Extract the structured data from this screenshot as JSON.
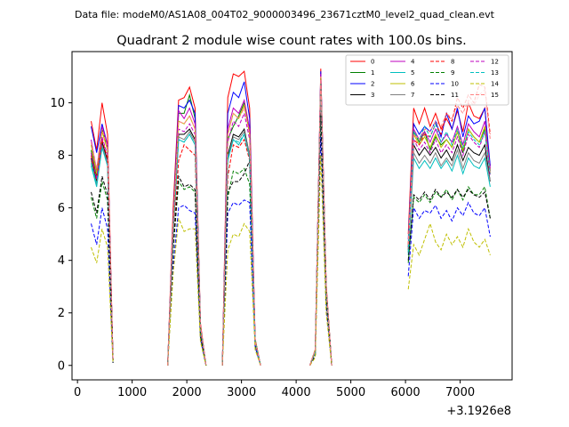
{
  "figure": {
    "suptitle": "Data file: modeM0/AS1A08_004T02_9000003496_23671cztM0_level2_quad_clean.evt",
    "title": "Quadrant 2 module wise count rates with 100.0s bins.",
    "x_offset_label": "+3.1926e8"
  },
  "chart_data": {
    "type": "line",
    "title": "Quadrant 2 module wise count rates with 100.0s bins.",
    "xlabel": "",
    "ylabel": "",
    "x_offset": 319260000,
    "xlim": [
      -100,
      7950
    ],
    "ylim": [
      -0.55,
      11.95
    ],
    "xticks": [
      0,
      1000,
      2000,
      3000,
      4000,
      5000,
      6000,
      7000
    ],
    "yticks": [
      0,
      2,
      4,
      6,
      8,
      10
    ],
    "xtick_labels": [
      "0",
      "1000",
      "2000",
      "3000",
      "4000",
      "5000",
      "6000",
      "7000"
    ],
    "ytick_labels": [
      "0",
      "2",
      "4",
      "6",
      "8",
      "10"
    ],
    "grid": false,
    "legend_placement": "top-right",
    "segments": [
      {
        "x": [
          250,
          350,
          450,
          550,
          650
        ]
      },
      {
        "x": [
          1650,
          1750,
          1850,
          1950,
          2050,
          2150,
          2250,
          2350
        ]
      },
      {
        "x": [
          2650,
          2750,
          2850,
          2950,
          3050,
          3150,
          3250,
          3350
        ]
      },
      {
        "x": [
          4250,
          4350,
          4450,
          4550,
          4650
        ]
      },
      {
        "x": [
          6050,
          6150,
          6250,
          6350,
          6450,
          6550,
          6650,
          6750,
          6850,
          6950,
          7050,
          7150,
          7250,
          7350,
          7450,
          7550
        ]
      }
    ],
    "series": [
      {
        "name": "0",
        "color": "#ff0000",
        "dash": "solid",
        "values": [
          [
            9.3,
            8.2,
            10.0,
            8.8,
            0.2
          ],
          [
            0.0,
            6.0,
            10.1,
            10.2,
            10.6,
            9.8,
            1.6,
            0.0
          ],
          [
            0.0,
            10.2,
            11.1,
            11.0,
            11.2,
            9.8,
            1.0,
            0.0
          ],
          [
            0.0,
            0.6,
            11.3,
            3.1,
            0.0
          ],
          [
            5.0,
            9.8,
            9.2,
            9.8,
            9.1,
            9.6,
            9.0,
            9.4,
            9.0,
            9.7,
            8.9,
            10.0,
            9.5,
            9.4,
            9.8,
            7.4
          ]
        ]
      },
      {
        "name": "1",
        "color": "#008000",
        "dash": "solid",
        "values": [
          [
            8.2,
            7.2,
            9.0,
            8.3,
            0.2
          ],
          [
            0.0,
            5.5,
            9.6,
            9.6,
            10.3,
            9.4,
            1.5,
            0.0
          ],
          [
            0.0,
            8.6,
            9.1,
            9.5,
            10.0,
            8.8,
            0.9,
            0.0
          ],
          [
            0.0,
            0.5,
            10.9,
            3.0,
            0.0
          ],
          [
            4.5,
            8.9,
            8.5,
            8.9,
            8.2,
            8.7,
            8.4,
            8.6,
            8.3,
            8.9,
            8.1,
            9.0,
            8.7,
            8.5,
            9.0,
            7.6
          ]
        ]
      },
      {
        "name": "2",
        "color": "#0000ff",
        "dash": "solid",
        "values": [
          [
            9.1,
            8.1,
            9.2,
            8.4,
            0.2
          ],
          [
            0.0,
            5.6,
            9.9,
            9.8,
            10.1,
            9.6,
            1.5,
            0.0
          ],
          [
            0.0,
            9.6,
            10.4,
            10.2,
            10.8,
            9.4,
            1.0,
            0.0
          ],
          [
            0.0,
            0.6,
            11.2,
            3.0,
            0.0
          ],
          [
            4.8,
            9.2,
            8.8,
            9.1,
            8.9,
            9.3,
            8.7,
            9.6,
            9.0,
            9.8,
            8.7,
            9.5,
            9.2,
            9.3,
            9.8,
            7.6
          ]
        ]
      },
      {
        "name": "3",
        "color": "#000000",
        "dash": "solid",
        "values": [
          [
            7.9,
            7.0,
            8.5,
            7.8,
            0.2
          ],
          [
            0.0,
            5.2,
            8.8,
            8.8,
            9.0,
            8.6,
            1.4,
            0.0
          ],
          [
            0.0,
            8.0,
            8.8,
            8.7,
            9.0,
            8.0,
            0.9,
            0.0
          ],
          [
            0.0,
            0.5,
            10.8,
            2.9,
            0.0
          ],
          [
            4.4,
            8.4,
            8.0,
            8.3,
            8.0,
            8.3,
            7.9,
            8.2,
            7.8,
            8.4,
            7.8,
            8.3,
            8.1,
            8.0,
            8.4,
            7.0
          ]
        ]
      },
      {
        "name": "4",
        "color": "#bf00bf",
        "dash": "solid",
        "values": [
          [
            8.6,
            7.4,
            9.1,
            8.4,
            0.2
          ],
          [
            0.0,
            5.5,
            9.7,
            9.4,
            9.8,
            9.2,
            1.5,
            0.0
          ],
          [
            0.0,
            9.0,
            9.8,
            9.6,
            10.1,
            9.0,
            1.0,
            0.0
          ],
          [
            0.0,
            0.6,
            11.1,
            3.0,
            0.0
          ],
          [
            4.6,
            9.0,
            8.6,
            8.9,
            8.5,
            9.0,
            8.5,
            8.8,
            8.5,
            9.1,
            8.4,
            9.2,
            8.9,
            8.7,
            9.3,
            7.5
          ]
        ]
      },
      {
        "name": "5",
        "color": "#00bfbf",
        "dash": "solid",
        "values": [
          [
            7.6,
            6.8,
            8.3,
            7.6,
            0.2
          ],
          [
            0.0,
            5.0,
            8.6,
            8.5,
            8.8,
            8.4,
            1.4,
            0.0
          ],
          [
            0.0,
            7.8,
            8.6,
            8.4,
            8.8,
            7.9,
            0.9,
            0.0
          ],
          [
            0.0,
            0.5,
            10.7,
            2.8,
            0.0
          ],
          [
            4.2,
            7.9,
            7.5,
            7.8,
            7.5,
            7.9,
            7.5,
            7.8,
            7.4,
            8.0,
            7.3,
            7.9,
            7.6,
            7.5,
            7.9,
            6.8
          ]
        ]
      },
      {
        "name": "6",
        "color": "#bfbf00",
        "dash": "solid",
        "values": [
          [
            8.4,
            7.3,
            8.9,
            8.2,
            0.2
          ],
          [
            0.0,
            5.4,
            9.3,
            9.2,
            9.5,
            9.0,
            1.5,
            0.0
          ],
          [
            0.0,
            8.8,
            9.6,
            9.4,
            9.9,
            8.8,
            1.0,
            0.0
          ],
          [
            0.0,
            0.6,
            11.0,
            3.0,
            0.0
          ],
          [
            4.6,
            8.8,
            8.4,
            8.7,
            8.3,
            8.8,
            8.3,
            8.6,
            8.3,
            8.9,
            8.2,
            9.0,
            8.7,
            8.5,
            9.1,
            7.3
          ]
        ]
      },
      {
        "name": "7",
        "color": "#808080",
        "dash": "solid",
        "values": [
          [
            7.8,
            6.9,
            8.4,
            7.7,
            0.2
          ],
          [
            0.0,
            5.1,
            8.7,
            8.6,
            8.9,
            8.5,
            1.4,
            0.0
          ],
          [
            0.0,
            7.9,
            8.7,
            8.6,
            8.9,
            8.0,
            0.9,
            0.0
          ],
          [
            0.0,
            0.5,
            10.8,
            2.9,
            0.0
          ],
          [
            4.3,
            8.1,
            7.7,
            8.0,
            7.7,
            8.1,
            7.6,
            7.9,
            7.6,
            8.2,
            7.5,
            8.1,
            7.8,
            7.7,
            8.1,
            7.0
          ]
        ]
      },
      {
        "name": "8",
        "color": "#ff0000",
        "dash": "dashed",
        "values": [
          [
            8.0,
            7.1,
            8.6,
            7.9,
            0.2
          ],
          [
            0.0,
            4.8,
            7.8,
            8.4,
            8.2,
            8.0,
            1.3,
            0.0
          ],
          [
            0.0,
            7.2,
            8.4,
            8.3,
            8.6,
            7.8,
            0.9,
            0.0
          ],
          [
            0.0,
            0.5,
            10.5,
            2.8,
            0.0
          ],
          [
            4.6,
            8.6,
            8.4,
            8.8,
            8.7,
            9.2,
            8.8,
            9.6,
            9.3,
            10.2,
            9.8,
            10.3,
            10.0,
            10.7,
            10.6,
            8.8
          ]
        ]
      },
      {
        "name": "9",
        "color": "#008000",
        "dash": "dashed",
        "values": [
          [
            6.4,
            5.6,
            7.0,
            6.3,
            0.1
          ],
          [
            0.0,
            4.4,
            7.0,
            6.7,
            6.8,
            6.6,
            1.1,
            0.0
          ],
          [
            0.0,
            6.4,
            7.4,
            7.3,
            7.5,
            6.9,
            0.8,
            0.0
          ],
          [
            0.0,
            0.4,
            9.5,
            2.5,
            0.0
          ],
          [
            3.9,
            6.4,
            6.2,
            6.5,
            6.2,
            6.6,
            6.4,
            6.7,
            6.3,
            6.7,
            6.3,
            6.8,
            6.5,
            6.5,
            6.8,
            5.6
          ]
        ]
      },
      {
        "name": "10",
        "color": "#0000ff",
        "dash": "dashed",
        "values": [
          [
            5.4,
            4.6,
            6.0,
            5.2,
            0.1
          ],
          [
            0.0,
            3.8,
            6.0,
            6.1,
            5.9,
            5.8,
            1.0,
            0.0
          ],
          [
            0.0,
            5.8,
            6.2,
            6.1,
            6.3,
            6.2,
            0.7,
            0.0
          ],
          [
            0.0,
            0.4,
            8.7,
            2.2,
            0.0
          ],
          [
            3.4,
            6.0,
            5.6,
            5.9,
            5.8,
            6.1,
            5.6,
            5.9,
            5.5,
            6.0,
            5.7,
            6.2,
            5.8,
            5.7,
            6.0,
            4.9
          ]
        ]
      },
      {
        "name": "11",
        "color": "#000000",
        "dash": "dashed",
        "values": [
          [
            6.6,
            5.8,
            7.2,
            6.5,
            0.1
          ],
          [
            0.0,
            4.5,
            7.2,
            6.8,
            6.9,
            6.7,
            1.1,
            0.0
          ],
          [
            0.0,
            6.6,
            7.0,
            7.0,
            7.3,
            7.8,
            0.8,
            0.0
          ],
          [
            0.0,
            0.4,
            9.6,
            2.5,
            0.0
          ],
          [
            4.0,
            6.5,
            6.3,
            6.6,
            6.3,
            6.7,
            6.4,
            6.6,
            6.4,
            6.7,
            6.4,
            6.7,
            6.5,
            6.4,
            6.6,
            5.6
          ]
        ]
      },
      {
        "name": "12",
        "color": "#bf00bf",
        "dash": "dashed",
        "values": [
          [
            8.1,
            7.1,
            8.7,
            8.0,
            0.2
          ],
          [
            0.0,
            5.3,
            9.0,
            8.9,
            9.2,
            8.8,
            1.5,
            0.0
          ],
          [
            0.0,
            8.5,
            9.3,
            9.1,
            9.6,
            8.6,
            0.9,
            0.0
          ],
          [
            0.0,
            0.5,
            10.9,
            2.9,
            0.0
          ],
          [
            4.5,
            8.6,
            8.2,
            8.5,
            8.1,
            8.6,
            8.1,
            8.4,
            8.1,
            8.7,
            8.0,
            8.8,
            8.5,
            8.3,
            8.9,
            7.2
          ]
        ]
      },
      {
        "name": "13",
        "color": "#00bfbf",
        "dash": "dashed",
        "values": [
          [
            7.7,
            6.9,
            8.3,
            7.6,
            0.2
          ],
          [
            0.0,
            5.0,
            8.6,
            8.5,
            8.8,
            8.4,
            1.4,
            0.0
          ],
          [
            0.0,
            7.9,
            8.6,
            8.5,
            8.8,
            7.9,
            0.9,
            0.0
          ],
          [
            0.0,
            0.5,
            10.7,
            2.8,
            0.0
          ],
          [
            4.3,
            8.9,
            8.6,
            9.1,
            8.7,
            9.2,
            8.5,
            8.9,
            8.4,
            9.0,
            8.3,
            8.9,
            8.6,
            8.4,
            8.9,
            7.3
          ]
        ]
      },
      {
        "name": "14",
        "color": "#bfbf00",
        "dash": "dashed",
        "values": [
          [
            4.5,
            3.9,
            5.2,
            4.5,
            0.1
          ],
          [
            0.0,
            3.5,
            5.6,
            5.1,
            5.2,
            5.2,
            0.9,
            0.0
          ],
          [
            0.0,
            4.4,
            5.0,
            4.9,
            5.4,
            5.1,
            0.6,
            0.0
          ],
          [
            0.0,
            0.3,
            8.0,
            2.0,
            0.0
          ],
          [
            2.9,
            4.6,
            4.2,
            4.8,
            5.4,
            4.7,
            4.4,
            5.0,
            4.6,
            4.9,
            4.5,
            5.2,
            4.7,
            4.5,
            4.8,
            4.2
          ]
        ]
      },
      {
        "name": "15",
        "color": "#ff8080",
        "dash": "dashed",
        "values": [
          [
            8.5,
            7.5,
            9.0,
            8.3,
            0.2
          ],
          [
            0.0,
            5.4,
            9.3,
            9.2,
            9.5,
            9.0,
            1.5,
            0.0
          ],
          [
            0.0,
            8.8,
            9.6,
            9.4,
            9.8,
            8.8,
            0.9,
            0.0
          ],
          [
            0.0,
            0.6,
            11.0,
            3.0,
            0.0
          ],
          [
            4.6,
            8.8,
            8.6,
            9.0,
            8.9,
            9.3,
            9.1,
            9.6,
            9.4,
            9.9,
            9.6,
            10.1,
            9.9,
            10.3,
            10.5,
            8.6
          ]
        ]
      }
    ]
  }
}
